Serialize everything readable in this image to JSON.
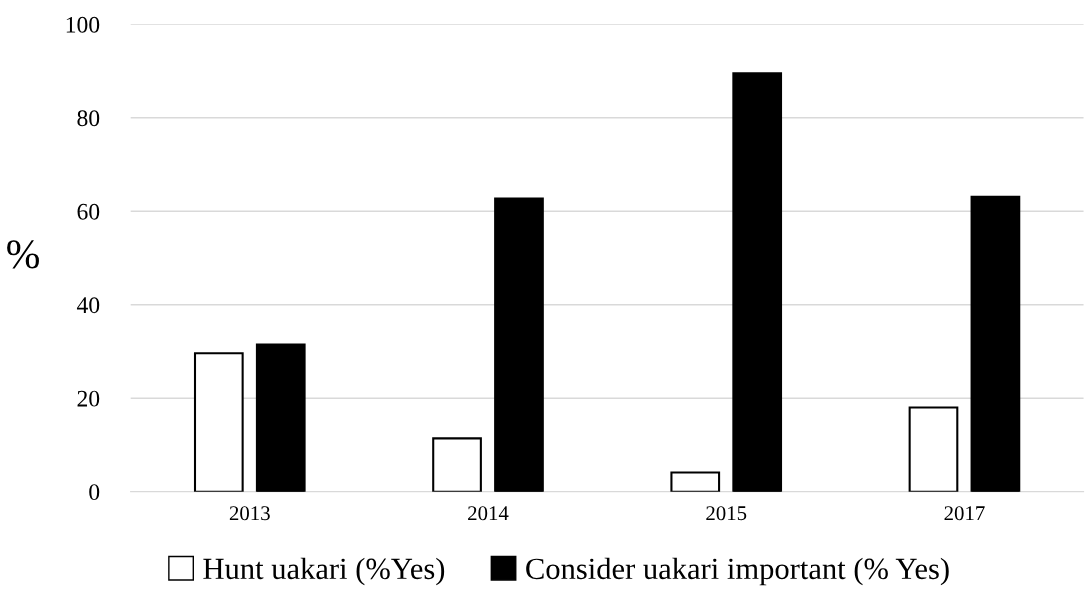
{
  "chart_data": {
    "type": "bar",
    "ylabel": "%",
    "categories": [
      "2013",
      "2014",
      "2015",
      "2017"
    ],
    "series": [
      {
        "name": "Hunt uakari (%Yes)",
        "color": "#ffffff",
        "values": [
          29.6,
          11.4,
          4.1,
          18.0
        ]
      },
      {
        "name": "Consider uakari important (% Yes)",
        "color": "#000000",
        "values": [
          31.5,
          62.7,
          89.5,
          63.1
        ]
      }
    ],
    "ylim": [
      0,
      100
    ],
    "yticks": [
      0,
      20,
      40,
      60,
      80,
      100
    ],
    "grid": "y",
    "legend": "bottom"
  }
}
